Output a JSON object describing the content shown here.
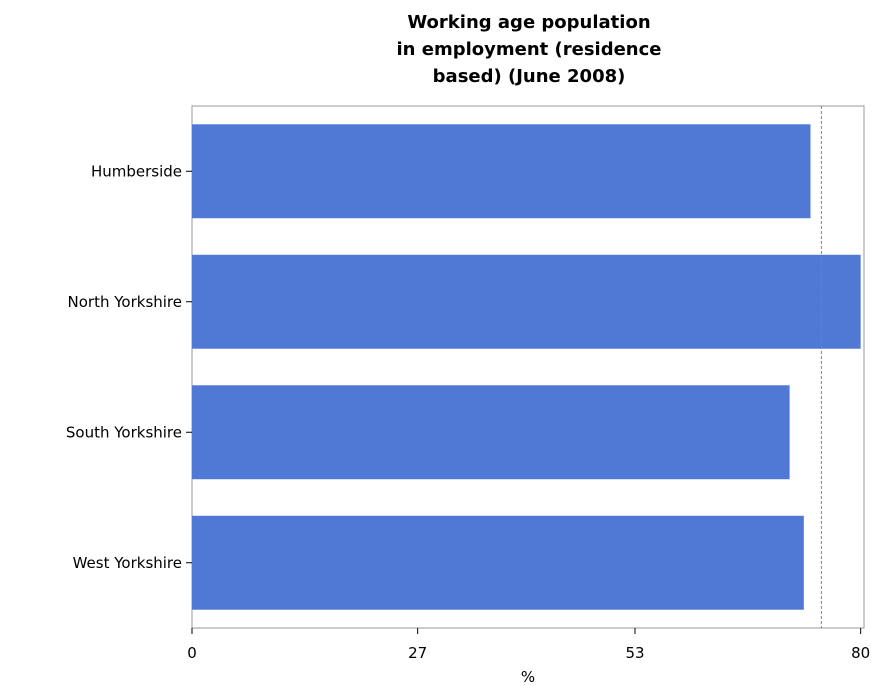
{
  "chart_data": {
    "type": "bar",
    "orientation": "horizontal",
    "title": [
      "Working age population",
      "in employment (residence",
      "based) (June 2008)"
    ],
    "categories": [
      "Humberside",
      "North Yorkshire",
      "South Yorkshire",
      "West Yorkshire"
    ],
    "values": [
      74,
      80,
      71.5,
      73.2
    ],
    "xlabel": "%",
    "ylabel": "",
    "xlim": [
      0,
      80.4
    ],
    "xticks": [
      0,
      27,
      53,
      80
    ],
    "reference_line": 75.3,
    "bar_color": "#5079d6",
    "grid": false
  }
}
